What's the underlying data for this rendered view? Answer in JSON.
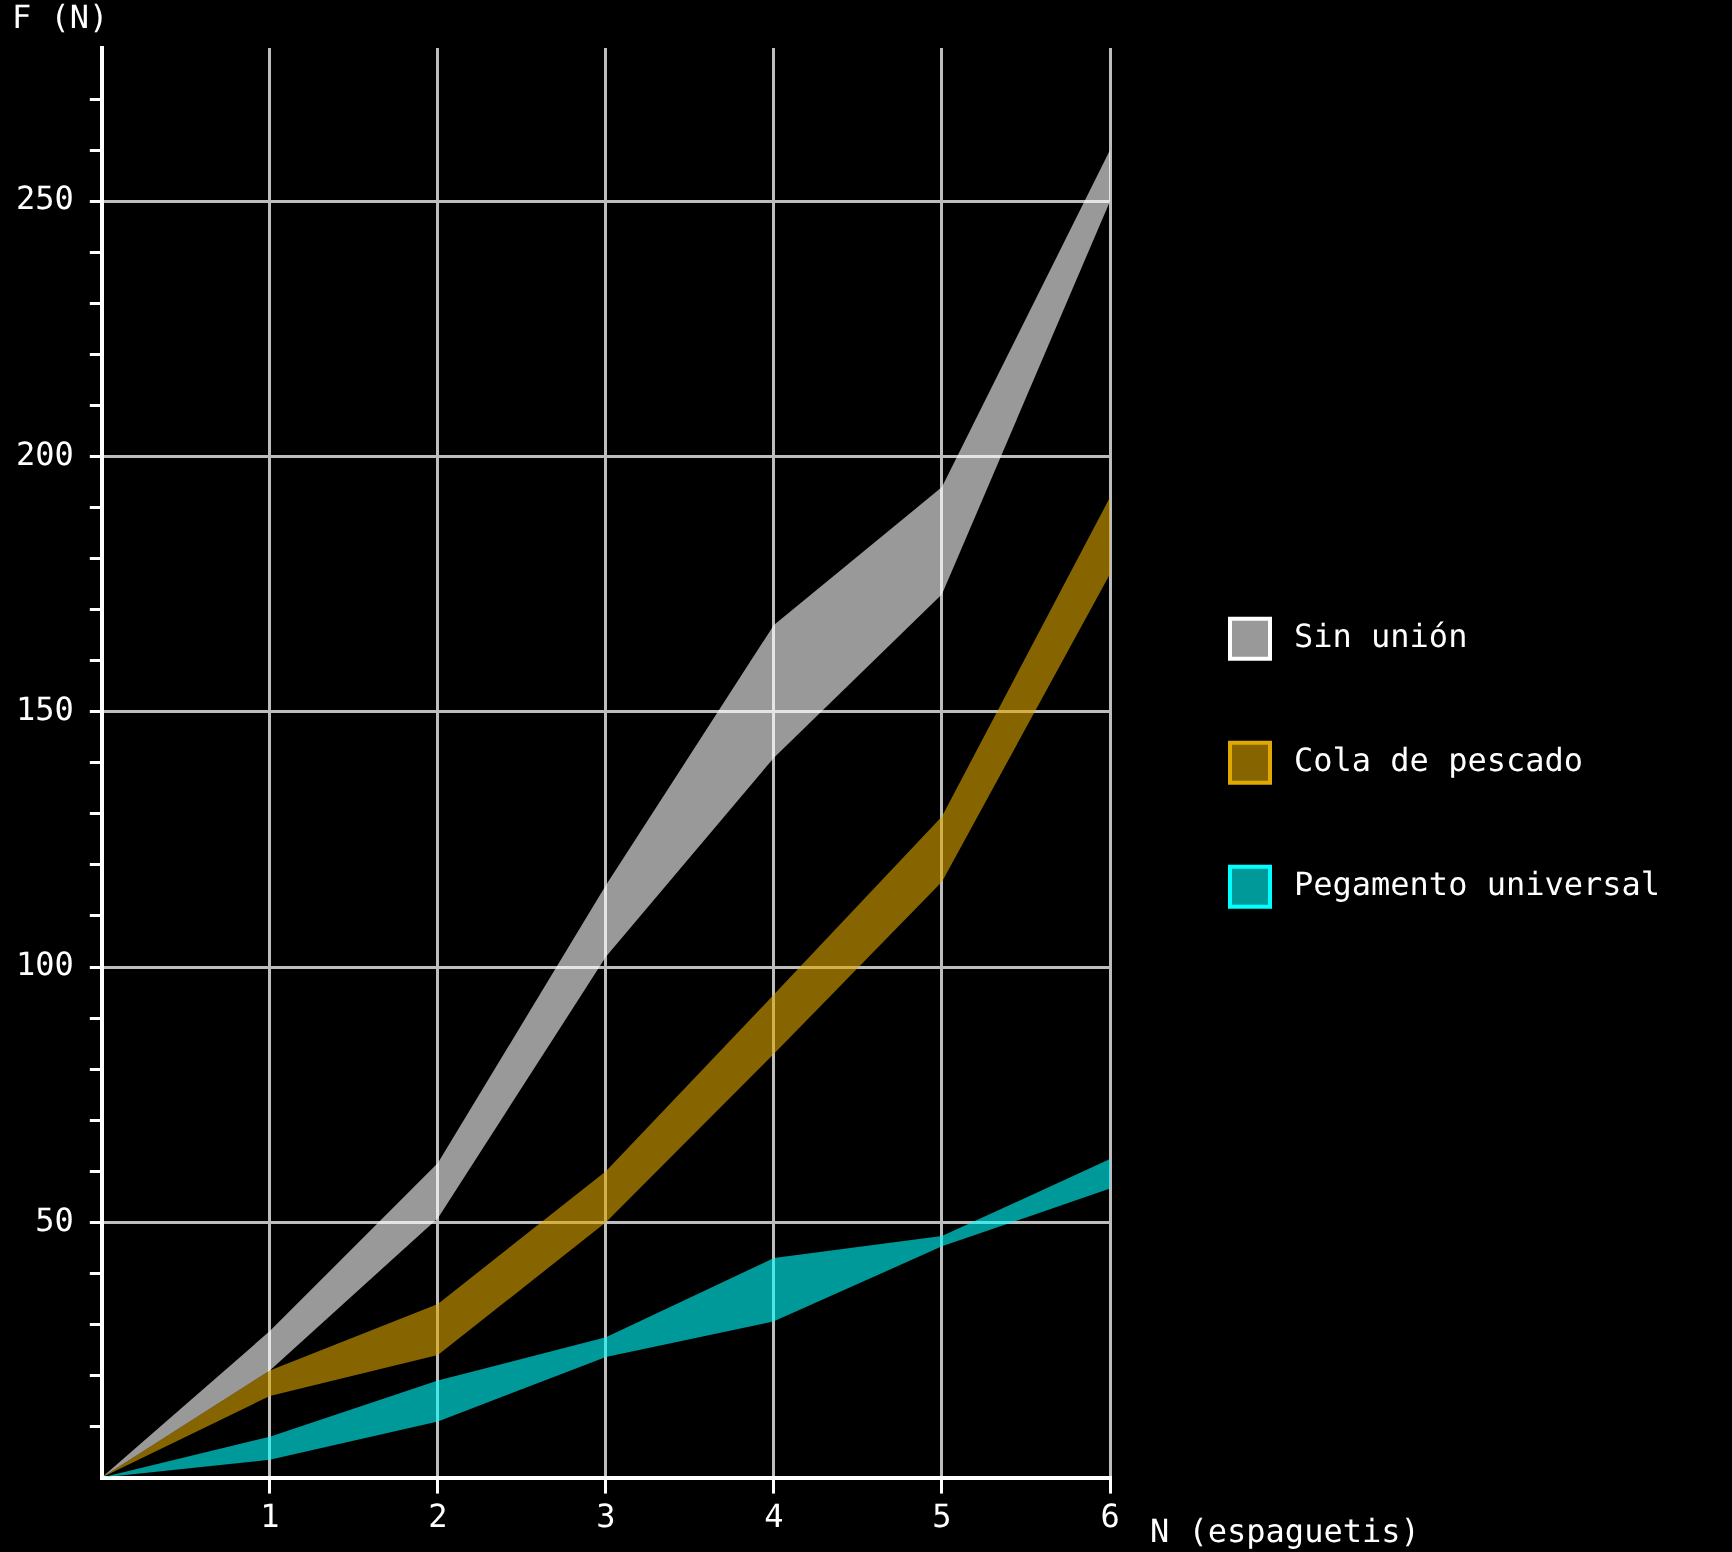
{
  "chart_data": {
    "type": "line",
    "xlabel": "N (espaguetis)",
    "ylabel": "F (N)",
    "x": [
      0,
      1,
      2,
      3,
      4,
      5,
      6
    ],
    "series": [
      {
        "name": "Sin unión",
        "color": "#ffffff",
        "values": [
          null,
          null,
          null,
          null,
          null,
          null,
          null
        ],
        "lower": [
          0,
          21,
          50.8,
          102,
          141,
          173,
          250
        ],
        "upper": [
          0,
          28.7,
          61.6,
          116,
          167,
          194,
          260
        ]
      },
      {
        "name": "Cola de pescado",
        "color": "#e0a800",
        "values": [
          null,
          null,
          null,
          null,
          null,
          null,
          null
        ],
        "lower": [
          0,
          16,
          24,
          50,
          83,
          116.7,
          177
        ],
        "upper": [
          0,
          21,
          34,
          60,
          94.6,
          129.5,
          192
        ]
      },
      {
        "name": "Pegamento universal",
        "color": "#00ffff",
        "values": [
          null,
          null,
          null,
          null,
          null,
          null,
          null
        ],
        "lower": [
          0,
          3.5,
          11,
          23.6,
          30.6,
          45.3,
          56.6
        ],
        "upper": [
          0,
          8,
          19,
          27.5,
          43,
          47.3,
          62.4
        ]
      }
    ],
    "xlim": [
      0,
      6
    ],
    "xticks": [
      1,
      2,
      3,
      4,
      5,
      6
    ],
    "ylim": [
      0,
      280
    ],
    "yticks": [
      {
        "value": 10,
        "label": null
      },
      {
        "value": 20,
        "label": null
      },
      {
        "value": 30,
        "label": null
      },
      {
        "value": 40,
        "label": null
      },
      50,
      {
        "value": 60,
        "label": null
      },
      {
        "value": 70,
        "label": null
      },
      {
        "value": 80,
        "label": null
      },
      {
        "value": 90,
        "label": null
      },
      100,
      {
        "value": 110,
        "label": null
      },
      {
        "value": 120,
        "label": null
      },
      {
        "value": 130,
        "label": null
      },
      {
        "value": 140,
        "label": null
      },
      150,
      {
        "value": 160,
        "label": null
      },
      {
        "value": 170,
        "label": null
      },
      {
        "value": 180,
        "label": null
      },
      {
        "value": 190,
        "label": null
      },
      200,
      {
        "value": 210,
        "label": null
      },
      {
        "value": 220,
        "label": null
      },
      {
        "value": 230,
        "label": null
      },
      {
        "value": 240,
        "label": null
      },
      250,
      {
        "value": 260,
        "label": null
      },
      {
        "value": 270,
        "label": null
      }
    ],
    "grid": true,
    "legend": "right"
  }
}
